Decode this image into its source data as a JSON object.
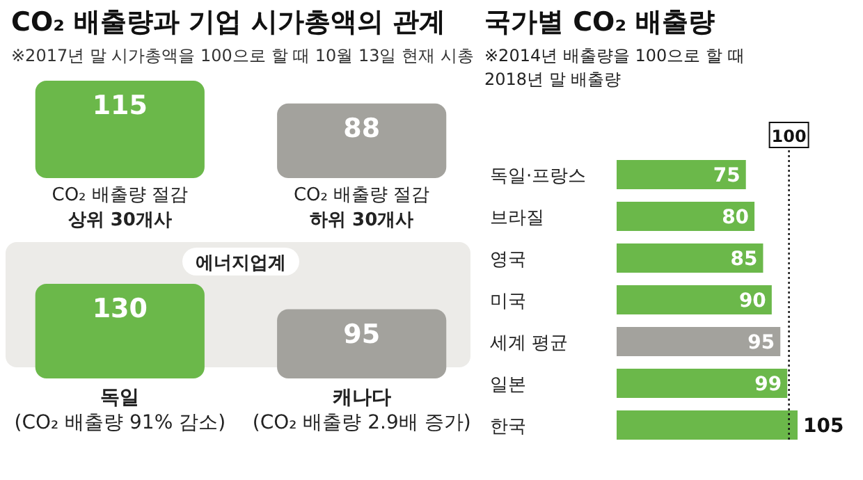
{
  "chart_data": [
    {
      "type": "bar",
      "title": "CO₂ 배출량과 기업 시가총액의 관계",
      "subtitle": "※2017년 말 시가총액을 100으로 할 때 10월 13일 현재 시총",
      "categories": [
        "CO₂ 배출량 절감\n상위 30개사",
        "CO₂ 배출량 절감\n하위 30개사"
      ],
      "values": [
        115,
        88
      ],
      "colors": [
        "#6bb84a",
        "#a3a29d"
      ],
      "data_labels": true
    },
    {
      "type": "bar",
      "title": "에너지업계",
      "categories": [
        "독일\n(CO₂ 배출량 91% 감소)",
        "캐나다\n(CO₂ 배출량 2.9배 증가)"
      ],
      "values": [
        130,
        95
      ],
      "colors": [
        "#6bb84a",
        "#a3a29d"
      ],
      "data_labels": true
    },
    {
      "type": "bar",
      "orientation": "horizontal",
      "title": "국가별 CO₂ 배출량",
      "subtitle": "※2014년 배출량을 100으로 할 때\n2018년 말 배출량",
      "categories": [
        "독일·프랑스",
        "브라질",
        "영국",
        "미국",
        "세계 평균",
        "일본",
        "한국"
      ],
      "values": [
        75,
        80,
        85,
        90,
        95,
        99,
        105
      ],
      "colors": [
        "#6bb84a",
        "#6bb84a",
        "#6bb84a",
        "#6bb84a",
        "#a3a29d",
        "#6bb84a",
        "#6bb84a"
      ],
      "ref_lines": [
        {
          "axis": "x",
          "value": 100,
          "label": "100"
        }
      ],
      "data_labels": true
    }
  ]
}
